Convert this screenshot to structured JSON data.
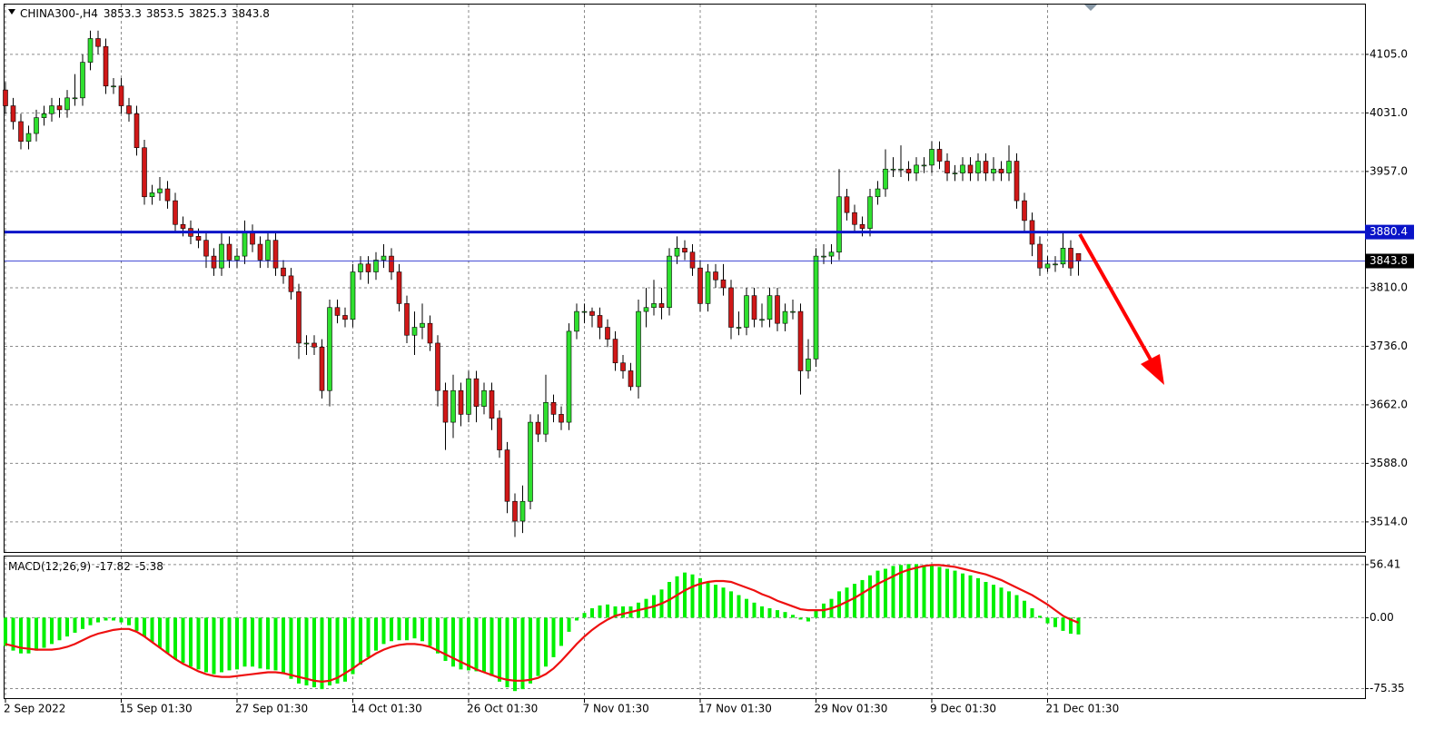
{
  "chart_data": [
    {
      "type": "candlestick",
      "title": "CHINA300-,H4",
      "up_color": "#2fe02f",
      "down_color": "#d01818",
      "grid": true,
      "ylim": [
        3476,
        4168
      ],
      "yticks": [
        {
          "value": 4105,
          "label": "4105.0"
        },
        {
          "value": 4031,
          "label": "4031.0"
        },
        {
          "value": 3957,
          "label": "3957.0"
        },
        {
          "value": 3810,
          "label": "3810.0"
        },
        {
          "value": 3736,
          "label": "3736.0"
        },
        {
          "value": 3662,
          "label": "3662.0"
        },
        {
          "value": 3588,
          "label": "3588.0"
        },
        {
          "value": 3514,
          "label": "3514.0"
        }
      ],
      "levels": [
        {
          "value": 3880.4,
          "color": "#0a14c8",
          "thick": true,
          "label_background": "#0a14c8"
        },
        {
          "value": 3843.8,
          "color": "#0a14c8",
          "thick": false,
          "label_background": "#000000"
        }
      ],
      "categories": [
        "2 Sep 2022",
        null,
        null,
        null,
        null,
        null,
        null,
        null,
        null,
        null,
        null,
        null,
        null,
        null,
        null,
        "15 Sep 01:30",
        null,
        null,
        null,
        null,
        null,
        null,
        null,
        null,
        null,
        null,
        null,
        null,
        null,
        null,
        "27 Sep 01:30",
        null,
        null,
        null,
        null,
        null,
        null,
        null,
        null,
        null,
        null,
        null,
        null,
        null,
        null,
        "14 Oct 01:30",
        null,
        null,
        null,
        null,
        null,
        null,
        null,
        null,
        null,
        null,
        null,
        null,
        null,
        null,
        "26 Oct 01:30",
        null,
        null,
        null,
        null,
        null,
        null,
        null,
        null,
        null,
        null,
        null,
        null,
        null,
        null,
        "7 Nov 01:30",
        null,
        null,
        null,
        null,
        null,
        null,
        null,
        null,
        null,
        null,
        null,
        null,
        null,
        null,
        "17 Nov 01:30",
        null,
        null,
        null,
        null,
        null,
        null,
        null,
        null,
        null,
        null,
        null,
        null,
        null,
        null,
        "29 Nov 01:30",
        null,
        null,
        null,
        null,
        null,
        null,
        null,
        null,
        null,
        null,
        null,
        null,
        null,
        null,
        "9 Dec 01:30",
        null,
        null,
        null,
        null,
        null,
        null,
        null,
        null,
        null,
        null,
        null,
        null,
        null,
        null,
        "21 Dec 01:30",
        null,
        null,
        null,
        null
      ],
      "open": [
        4060,
        4040,
        4020,
        3995,
        4005,
        4025,
        4030,
        4040,
        4035,
        4050,
        4050,
        4095,
        4125,
        4115,
        4065,
        4065,
        4040,
        4030,
        3987,
        3925,
        3930,
        3935,
        3920,
        3890,
        3885,
        3875,
        3870,
        3850,
        3835,
        3865,
        3845,
        3850,
        3880,
        3865,
        3845,
        3870,
        3835,
        3825,
        3805,
        3740,
        3740,
        3735,
        3680,
        3785,
        3775,
        3770,
        3830,
        3840,
        3830,
        3845,
        3850,
        3830,
        3790,
        3750,
        3760,
        3765,
        3740,
        3680,
        3640,
        3680,
        3650,
        3695,
        3660,
        3680,
        3645,
        3605,
        3540,
        3515,
        3540,
        3640,
        3625,
        3665,
        3650,
        3640,
        3755,
        3780,
        3780,
        3775,
        3760,
        3745,
        3715,
        3705,
        3685,
        3780,
        3785,
        3790,
        3785,
        3850,
        3860,
        3855,
        3835,
        3790,
        3830,
        3820,
        3810,
        3760,
        3760,
        3800,
        3770,
        3770,
        3800,
        3765,
        3780,
        3780,
        3705,
        3720,
        3850,
        3850,
        3855,
        3925,
        3905,
        3890,
        3885,
        3925,
        3935,
        3960,
        3960,
        3960,
        3955,
        3965,
        3965,
        3985,
        3970,
        3955,
        3955,
        3965,
        3955,
        3970,
        3955,
        3960,
        3955,
        3970,
        3920,
        3895,
        3865,
        3835,
        3840,
        3840,
        3860,
        3853.3
      ],
      "high": [
        4070,
        4050,
        4030,
        4015,
        4035,
        4040,
        4050,
        4050,
        4060,
        4080,
        4105,
        4135,
        4135,
        4125,
        4075,
        4075,
        4050,
        4040,
        3997,
        3940,
        3950,
        3945,
        3930,
        3900,
        3895,
        3885,
        3880,
        3860,
        3880,
        3875,
        3860,
        3895,
        3890,
        3875,
        3880,
        3880,
        3845,
        3835,
        3815,
        3750,
        3750,
        3745,
        3795,
        3795,
        3785,
        3840,
        3850,
        3850,
        3855,
        3865,
        3860,
        3840,
        3800,
        3780,
        3790,
        3775,
        3750,
        3690,
        3700,
        3690,
        3705,
        3705,
        3690,
        3690,
        3655,
        3615,
        3550,
        3560,
        3650,
        3650,
        3700,
        3675,
        3660,
        3765,
        3790,
        3790,
        3785,
        3785,
        3770,
        3755,
        3725,
        3715,
        3795,
        3810,
        3820,
        3810,
        3860,
        3875,
        3870,
        3865,
        3845,
        3840,
        3840,
        3840,
        3820,
        3780,
        3810,
        3810,
        3790,
        3810,
        3810,
        3790,
        3795,
        3790,
        3745,
        3860,
        3865,
        3865,
        3960,
        3935,
        3915,
        3900,
        3935,
        3945,
        3985,
        3975,
        3990,
        3970,
        3975,
        3975,
        3995,
        3995,
        3980,
        3965,
        3975,
        3975,
        3980,
        3980,
        3975,
        3970,
        3990,
        3980,
        3930,
        3905,
        3875,
        3850,
        3850,
        3880,
        3870,
        3853.5
      ],
      "low": [
        4030,
        4010,
        3985,
        3985,
        3995,
        4015,
        4020,
        4025,
        4025,
        4040,
        4040,
        4085,
        4105,
        4055,
        4055,
        4030,
        4020,
        3977,
        3915,
        3915,
        3920,
        3910,
        3880,
        3875,
        3865,
        3860,
        3835,
        3825,
        3825,
        3835,
        3835,
        3840,
        3855,
        3835,
        3835,
        3825,
        3815,
        3795,
        3720,
        3725,
        3725,
        3670,
        3660,
        3765,
        3760,
        3760,
        3820,
        3815,
        3820,
        3835,
        3820,
        3780,
        3740,
        3725,
        3745,
        3730,
        3660,
        3605,
        3620,
        3635,
        3640,
        3640,
        3650,
        3630,
        3595,
        3525,
        3495,
        3500,
        3530,
        3615,
        3615,
        3640,
        3630,
        3630,
        3745,
        3765,
        3760,
        3745,
        3735,
        3705,
        3695,
        3680,
        3670,
        3760,
        3775,
        3770,
        3775,
        3840,
        3845,
        3825,
        3780,
        3780,
        3810,
        3800,
        3745,
        3750,
        3750,
        3760,
        3760,
        3760,
        3755,
        3755,
        3770,
        3675,
        3695,
        3710,
        3840,
        3840,
        3845,
        3895,
        3880,
        3875,
        3875,
        3915,
        3925,
        3950,
        3950,
        3945,
        3945,
        3955,
        3955,
        3960,
        3945,
        3945,
        3945,
        3945,
        3945,
        3945,
        3945,
        3945,
        3945,
        3910,
        3880,
        3850,
        3825,
        3830,
        3830,
        3835,
        3825,
        3825.3
      ],
      "close": [
        4040,
        4020,
        3995,
        4005,
        4025,
        4030,
        4040,
        4035,
        4050,
        4050,
        4095,
        4125,
        4115,
        4065,
        4065,
        4040,
        4030,
        3987,
        3925,
        3930,
        3935,
        3920,
        3890,
        3885,
        3875,
        3870,
        3850,
        3835,
        3865,
        3845,
        3850,
        3880,
        3865,
        3845,
        3870,
        3835,
        3825,
        3805,
        3740,
        3740,
        3735,
        3680,
        3785,
        3775,
        3770,
        3830,
        3840,
        3830,
        3845,
        3850,
        3830,
        3790,
        3750,
        3760,
        3765,
        3740,
        3680,
        3640,
        3680,
        3650,
        3695,
        3660,
        3680,
        3645,
        3605,
        3540,
        3515,
        3540,
        3640,
        3625,
        3665,
        3650,
        3640,
        3755,
        3780,
        3780,
        3775,
        3760,
        3745,
        3715,
        3705,
        3685,
        3780,
        3785,
        3790,
        3785,
        3850,
        3860,
        3855,
        3835,
        3790,
        3830,
        3820,
        3810,
        3760,
        3760,
        3800,
        3770,
        3770,
        3800,
        3765,
        3780,
        3780,
        3705,
        3720,
        3850,
        3850,
        3855,
        3925,
        3905,
        3890,
        3885,
        3925,
        3935,
        3960,
        3960,
        3960,
        3955,
        3965,
        3965,
        3985,
        3970,
        3955,
        3955,
        3965,
        3955,
        3970,
        3955,
        3960,
        3955,
        3970,
        3920,
        3895,
        3865,
        3835,
        3840,
        3840,
        3860,
        3835,
        3843.8
      ]
    },
    {
      "type": "macd",
      "title": "MACD(12,26,9)",
      "histogram_color": "#00f000",
      "signal_color": "#ee1010",
      "grid": true,
      "ylim": [
        -86.5,
        66
      ],
      "yticks": [
        56.41,
        {
          "value": 0,
          "label": "0.00"
        },
        -75.35
      ],
      "histogram": [
        -30,
        -35,
        -38,
        -38,
        -35,
        -32,
        -28,
        -24,
        -20,
        -16,
        -12,
        -8,
        -5,
        -3,
        -3,
        -5,
        -8,
        -14,
        -20,
        -26,
        -32,
        -38,
        -44,
        -48,
        -52,
        -55,
        -58,
        -60,
        -58,
        -56,
        -55,
        -52,
        -52,
        -54,
        -55,
        -56,
        -60,
        -65,
        -70,
        -72,
        -74,
        -76,
        -72,
        -70,
        -68,
        -60,
        -50,
        -42,
        -35,
        -28,
        -25,
        -24,
        -24,
        -22,
        -25,
        -30,
        -38,
        -46,
        -52,
        -55,
        -56,
        -57,
        -58,
        -62,
        -68,
        -74,
        -78,
        -76,
        -70,
        -62,
        -52,
        -42,
        -30,
        -15,
        -3,
        5,
        10,
        13,
        14,
        12,
        12,
        12,
        16,
        20,
        24,
        30,
        38,
        44,
        48,
        46,
        42,
        38,
        35,
        32,
        28,
        24,
        20,
        16,
        12,
        10,
        8,
        6,
        3,
        -2,
        -4,
        8,
        15,
        20,
        28,
        32,
        36,
        40,
        45,
        50,
        52,
        55,
        56,
        57,
        57,
        56,
        56,
        54,
        52,
        50,
        47,
        45,
        42,
        38,
        35,
        32,
        28,
        24,
        18,
        10,
        2,
        -6,
        -10,
        -14,
        -17,
        -17.82
      ],
      "signal": [
        -28,
        -30,
        -32,
        -33,
        -34,
        -34,
        -34,
        -33,
        -31,
        -28,
        -24,
        -20,
        -17,
        -15,
        -13,
        -12,
        -12,
        -15,
        -20,
        -26,
        -32,
        -38,
        -44,
        -49,
        -53,
        -57,
        -60,
        -62,
        -63,
        -63,
        -62,
        -61,
        -60,
        -59,
        -58,
        -58,
        -59,
        -61,
        -63,
        -65,
        -67,
        -68,
        -67,
        -64,
        -59,
        -54,
        -48,
        -43,
        -38,
        -34,
        -31,
        -29,
        -28,
        -28,
        -29,
        -31,
        -35,
        -39,
        -43,
        -47,
        -51,
        -55,
        -58,
        -61,
        -64,
        -66,
        -67,
        -67,
        -66,
        -64,
        -60,
        -54,
        -46,
        -37,
        -28,
        -20,
        -13,
        -7,
        -2,
        2,
        4,
        6,
        8,
        10,
        12,
        15,
        19,
        24,
        29,
        33,
        36,
        38,
        39,
        39,
        38,
        35,
        32,
        29,
        25,
        22,
        18,
        15,
        12,
        9,
        8,
        8,
        8,
        10,
        13,
        17,
        21,
        26,
        31,
        36,
        40,
        44,
        48,
        51,
        53,
        55,
        56,
        56,
        55,
        54,
        52,
        50,
        48,
        46,
        43,
        40,
        36,
        32,
        28,
        24,
        19,
        14,
        8,
        2,
        -2,
        -5.38
      ]
    }
  ]
}
